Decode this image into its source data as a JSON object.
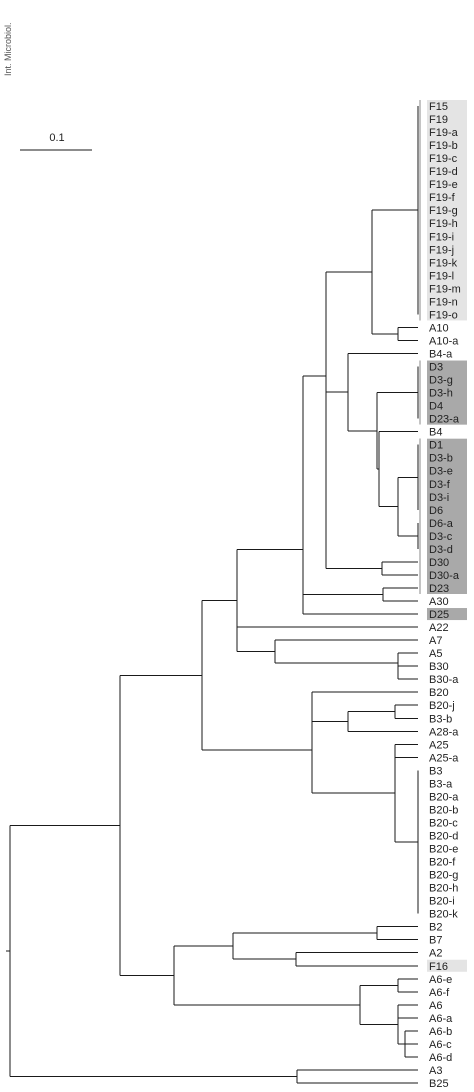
{
  "figure": {
    "journal_credit": "Int. Microbiol.",
    "scale_bar_label": "0.1"
  },
  "colors": {
    "line": "#1a1a1a",
    "highlight_light": "#e4e4e4",
    "highlight_dark": "#a9a9a9"
  },
  "tree": {
    "leaves": [
      {
        "label": "F15",
        "group": "F19"
      },
      {
        "label": "F19",
        "group": "F19"
      },
      {
        "label": "F19-a",
        "group": "F19"
      },
      {
        "label": "F19-b",
        "group": "F19"
      },
      {
        "label": "F19-c",
        "group": "F19"
      },
      {
        "label": "F19-d",
        "group": "F19"
      },
      {
        "label": "F19-e",
        "group": "F19"
      },
      {
        "label": "F19-f",
        "group": "F19"
      },
      {
        "label": "F19-g",
        "group": "F19"
      },
      {
        "label": "F19-h",
        "group": "F19"
      },
      {
        "label": "F19-i",
        "group": "F19"
      },
      {
        "label": "F19-j",
        "group": "F19"
      },
      {
        "label": "F19-k",
        "group": "F19"
      },
      {
        "label": "F19-l",
        "group": "F19"
      },
      {
        "label": "F19-m",
        "group": "F19"
      },
      {
        "label": "F19-n",
        "group": "F19"
      },
      {
        "label": "F19-o",
        "group": "F19"
      },
      {
        "label": "A10",
        "group": ""
      },
      {
        "label": "A10-a",
        "group": ""
      },
      {
        "label": "B4-a",
        "group": ""
      },
      {
        "label": "D3",
        "group": "D3"
      },
      {
        "label": "D3-g",
        "group": "D3"
      },
      {
        "label": "D3-h",
        "group": "D3"
      },
      {
        "label": "D4",
        "group": "D3"
      },
      {
        "label": "D23-a",
        "group": "D3"
      },
      {
        "label": "B4",
        "group": ""
      },
      {
        "label": "D1",
        "group": "D1"
      },
      {
        "label": "D3-b",
        "group": "D1"
      },
      {
        "label": "D3-e",
        "group": "D1"
      },
      {
        "label": "D3-f",
        "group": "D1"
      },
      {
        "label": "D3-i",
        "group": "D1"
      },
      {
        "label": "D6",
        "group": "D1"
      },
      {
        "label": "D6-a",
        "group": "D1"
      },
      {
        "label": "D3-c",
        "group": "D1"
      },
      {
        "label": "D3-d",
        "group": "D1"
      },
      {
        "label": "D30",
        "group": "D1"
      },
      {
        "label": "D30-a",
        "group": "D1"
      },
      {
        "label": "D23",
        "group": "D1"
      },
      {
        "label": "A30",
        "group": ""
      },
      {
        "label": "D25",
        "group": "D25"
      },
      {
        "label": "A22",
        "group": ""
      },
      {
        "label": "A7",
        "group": ""
      },
      {
        "label": "A5",
        "group": ""
      },
      {
        "label": "B30",
        "group": ""
      },
      {
        "label": "B30-a",
        "group": ""
      },
      {
        "label": "B20",
        "group": ""
      },
      {
        "label": "B20-j",
        "group": ""
      },
      {
        "label": "B3-b",
        "group": ""
      },
      {
        "label": "A28-a",
        "group": ""
      },
      {
        "label": "A25",
        "group": ""
      },
      {
        "label": "A25-a",
        "group": ""
      },
      {
        "label": "B3",
        "group": ""
      },
      {
        "label": "B3-a",
        "group": ""
      },
      {
        "label": "B20-a",
        "group": ""
      },
      {
        "label": "B20-b",
        "group": ""
      },
      {
        "label": "B20-c",
        "group": ""
      },
      {
        "label": "B20-d",
        "group": ""
      },
      {
        "label": "B20-e",
        "group": ""
      },
      {
        "label": "B20-f",
        "group": ""
      },
      {
        "label": "B20-g",
        "group": ""
      },
      {
        "label": "B20-h",
        "group": ""
      },
      {
        "label": "B20-i",
        "group": ""
      },
      {
        "label": "B20-k",
        "group": ""
      },
      {
        "label": "B2",
        "group": ""
      },
      {
        "label": "B7",
        "group": ""
      },
      {
        "label": "A2",
        "group": ""
      },
      {
        "label": "F16",
        "group": "F16"
      },
      {
        "label": "A6-e",
        "group": ""
      },
      {
        "label": "A6-f",
        "group": ""
      },
      {
        "label": "A6",
        "group": ""
      },
      {
        "label": "A6-a",
        "group": ""
      },
      {
        "label": "A6-b",
        "group": ""
      },
      {
        "label": "A6-c",
        "group": ""
      },
      {
        "label": "A6-d",
        "group": ""
      },
      {
        "label": "A3",
        "group": ""
      },
      {
        "label": "B25",
        "group": ""
      }
    ],
    "highlight_groups": [
      {
        "id": "F19",
        "shade": "light",
        "first": 0,
        "last": 16
      },
      {
        "id": "D3",
        "shade": "dark",
        "first": 20,
        "last": 24
      },
      {
        "id": "D1",
        "shade": "dark",
        "first": 26,
        "last": 37
      },
      {
        "id": "D25",
        "shade": "dark",
        "first": 39,
        "last": 39
      },
      {
        "id": "F16",
        "shade": "light",
        "first": 66,
        "last": 66
      }
    ]
  }
}
